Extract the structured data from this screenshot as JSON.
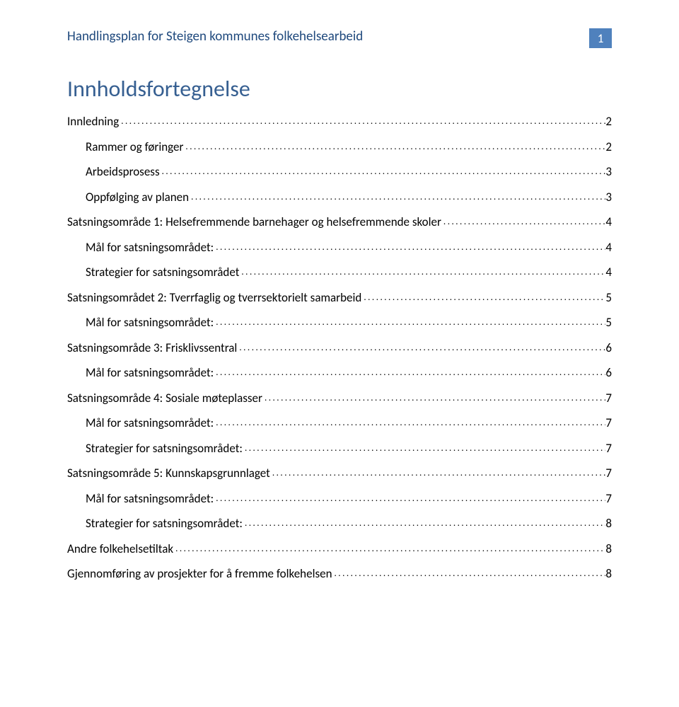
{
  "header": {
    "title": "Handlingsplan for Steigen kommunes folkehelsearbeid",
    "page_number": "1"
  },
  "toc_heading": "Innholdsfortegnelse",
  "toc": [
    {
      "label": "Innledning",
      "page": "2",
      "level": 0
    },
    {
      "label": "Rammer og føringer",
      "page": "2",
      "level": 1
    },
    {
      "label": "Arbeidsprosess",
      "page": "3",
      "level": 1
    },
    {
      "label": "Oppfølging av planen",
      "page": "3",
      "level": 1
    },
    {
      "label": "Satsningsområde 1: Helsefremmende barnehager og helsefremmende skoler",
      "page": "4",
      "level": 0
    },
    {
      "label": "Mål for satsningsområdet:",
      "page": "4",
      "level": 1
    },
    {
      "label": "Strategier for satsningsområdet",
      "page": "4",
      "level": 1
    },
    {
      "label": "Satsningsområdet 2: Tverrfaglig og tverrsektorielt samarbeid",
      "page": "5",
      "level": 0
    },
    {
      "label": "Mål for satsningsområdet:",
      "page": "5",
      "level": 1
    },
    {
      "label": "Satsningsområde 3: Frisklivssentral",
      "page": "6",
      "level": 0
    },
    {
      "label": "Mål for satsningsområdet:",
      "page": "6",
      "level": 1
    },
    {
      "label": "Satsningsområde 4: Sosiale møteplasser",
      "page": "7",
      "level": 0
    },
    {
      "label": "Mål for satsningsområdet:",
      "page": "7",
      "level": 1
    },
    {
      "label": "Strategier for satsningsområdet:",
      "page": "7",
      "level": 1
    },
    {
      "label": "Satsningsområde 5: Kunnskapsgrunnlaget",
      "page": "7",
      "level": 0
    },
    {
      "label": "Mål for satsningsområdet:",
      "page": "7",
      "level": 1
    },
    {
      "label": "Strategier for satsningsområdet:",
      "page": "8",
      "level": 1
    },
    {
      "label": "Andre folkehelsetiltak",
      "page": "8",
      "level": 0
    },
    {
      "label": "Gjennomføring av prosjekter for å fremme folkehelsen",
      "page": "8",
      "level": 0
    }
  ],
  "colors": {
    "header_text": "#1f497d",
    "badge_bg": "#4f81bd",
    "badge_text": "#ffffff",
    "heading": "#365f91",
    "body_text": "#000000",
    "background": "#ffffff"
  },
  "fonts": {
    "family": "Gill Sans",
    "header_size_pt": 14,
    "heading_size_pt": 24,
    "toc_size_pt": 13
  }
}
